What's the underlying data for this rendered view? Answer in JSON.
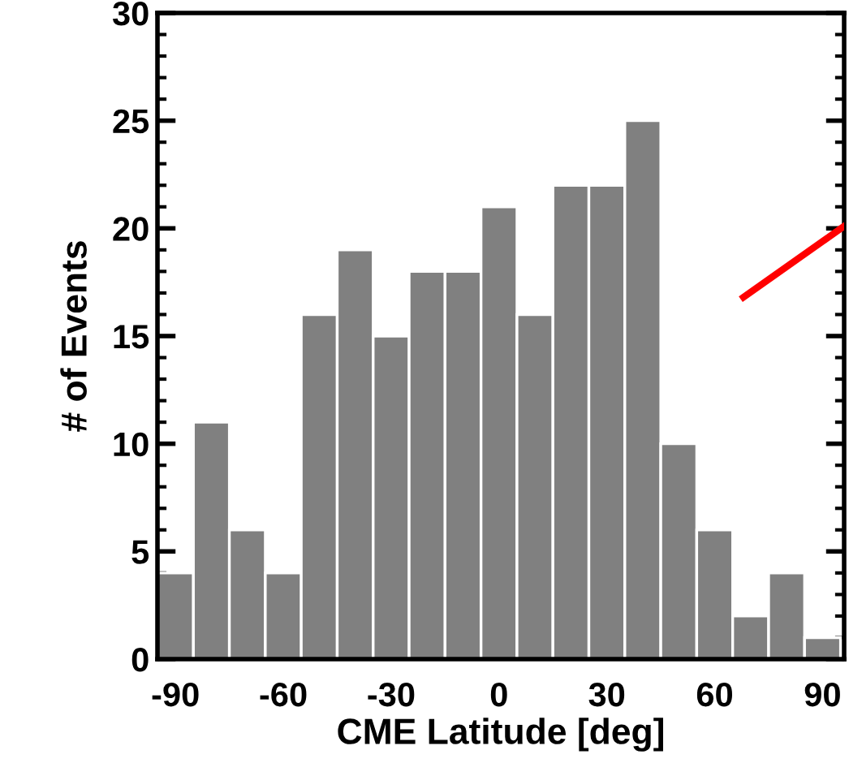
{
  "chart_data": {
    "type": "histogram",
    "xlabel": "CME Latitude [deg]",
    "ylabel": "# of Events",
    "bins": [
      -95,
      -85,
      -75,
      -65,
      -55,
      -45,
      -35,
      -25,
      -15,
      -5,
      5,
      15,
      25,
      35,
      45,
      55,
      65,
      75,
      85,
      95
    ],
    "values": [
      4,
      11,
      6,
      4,
      16,
      19,
      15,
      18,
      18,
      21,
      16,
      22,
      22,
      25,
      10,
      6,
      2,
      4,
      1
    ],
    "color": "#808080",
    "series": [
      {
        "type": "line",
        "x": [
          68,
          96
        ],
        "values": [
          16.8,
          20.1
        ],
        "color": "#ff0000"
      }
    ],
    "xlim": [
      -95,
      96
    ],
    "xticks": [
      -90,
      -60,
      -30,
      0,
      30,
      60,
      90
    ],
    "ylim": [
      0,
      30
    ],
    "yticks": [
      0,
      5,
      10,
      15,
      20,
      25,
      30
    ],
    "grid": false
  }
}
